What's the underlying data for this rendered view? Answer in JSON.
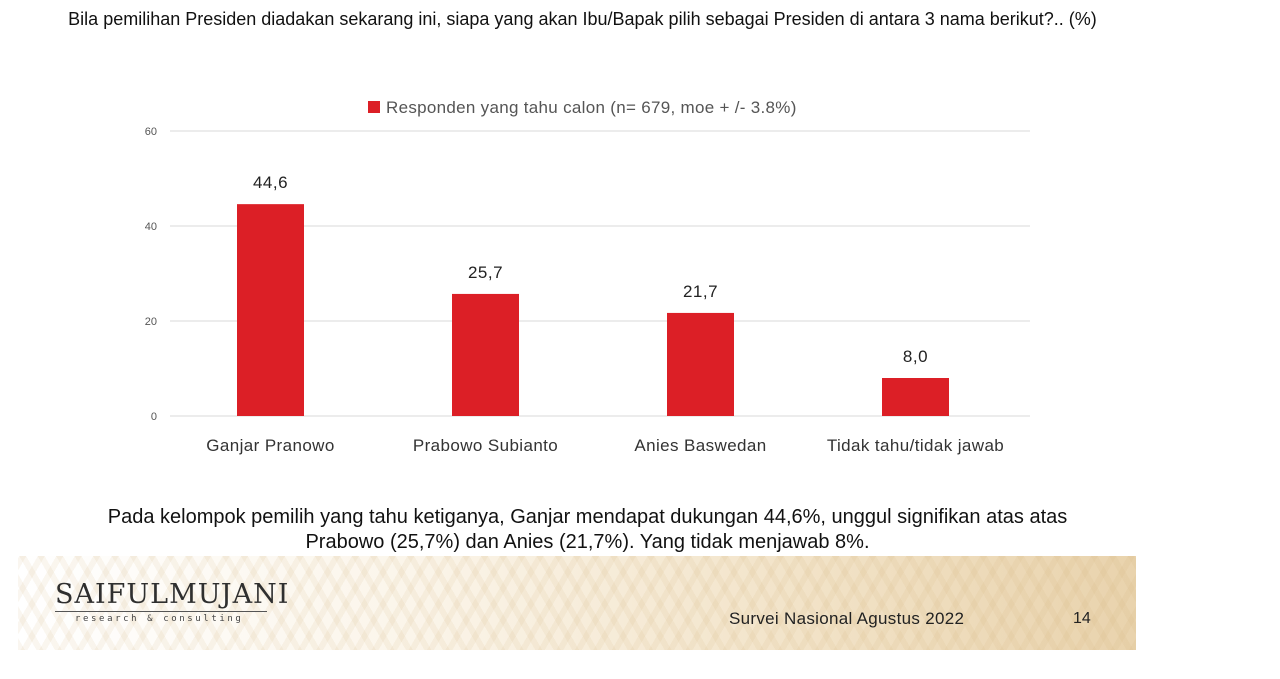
{
  "slide": {
    "title": "Bila pemilihan Presiden diadakan sekarang ini, siapa yang akan Ibu/Bapak pilih sebagai Presiden di antara 3 nama berikut?.. (%)",
    "summary": "Pada kelompok pemilih yang tahu ketiganya, Ganjar mendapat dukungan 44,6%, unggul signifikan atas atas Prabowo (25,7%) dan Anies (21,7%). Yang tidak menjawab 8%.",
    "logo": {
      "name": "SAIFULMUJANI",
      "tagline": "research & consulting"
    },
    "footer": "Survei Nasional Agustus 2022",
    "page_number": "14"
  },
  "colors": {
    "bar": "#dc1f26",
    "grid": "#d9d9d9",
    "text": "#333333"
  },
  "chart_data": {
    "type": "bar",
    "categories": [
      "Ganjar Pranowo",
      "Prabowo Subianto",
      "Anies Baswedan",
      "Tidak tahu/tidak jawab"
    ],
    "series": [
      {
        "name": "Responden yang tahu calon (n= 679, moe + /- 3.8%)",
        "values": [
          44.6,
          25.7,
          21.7,
          8.0
        ],
        "labels": [
          "44,6",
          "25,7",
          "21,7",
          "8,0"
        ]
      }
    ],
    "ylim": [
      0,
      60
    ],
    "yticks": [
      0,
      20,
      40,
      60
    ],
    "grid": true,
    "legend": "top"
  }
}
